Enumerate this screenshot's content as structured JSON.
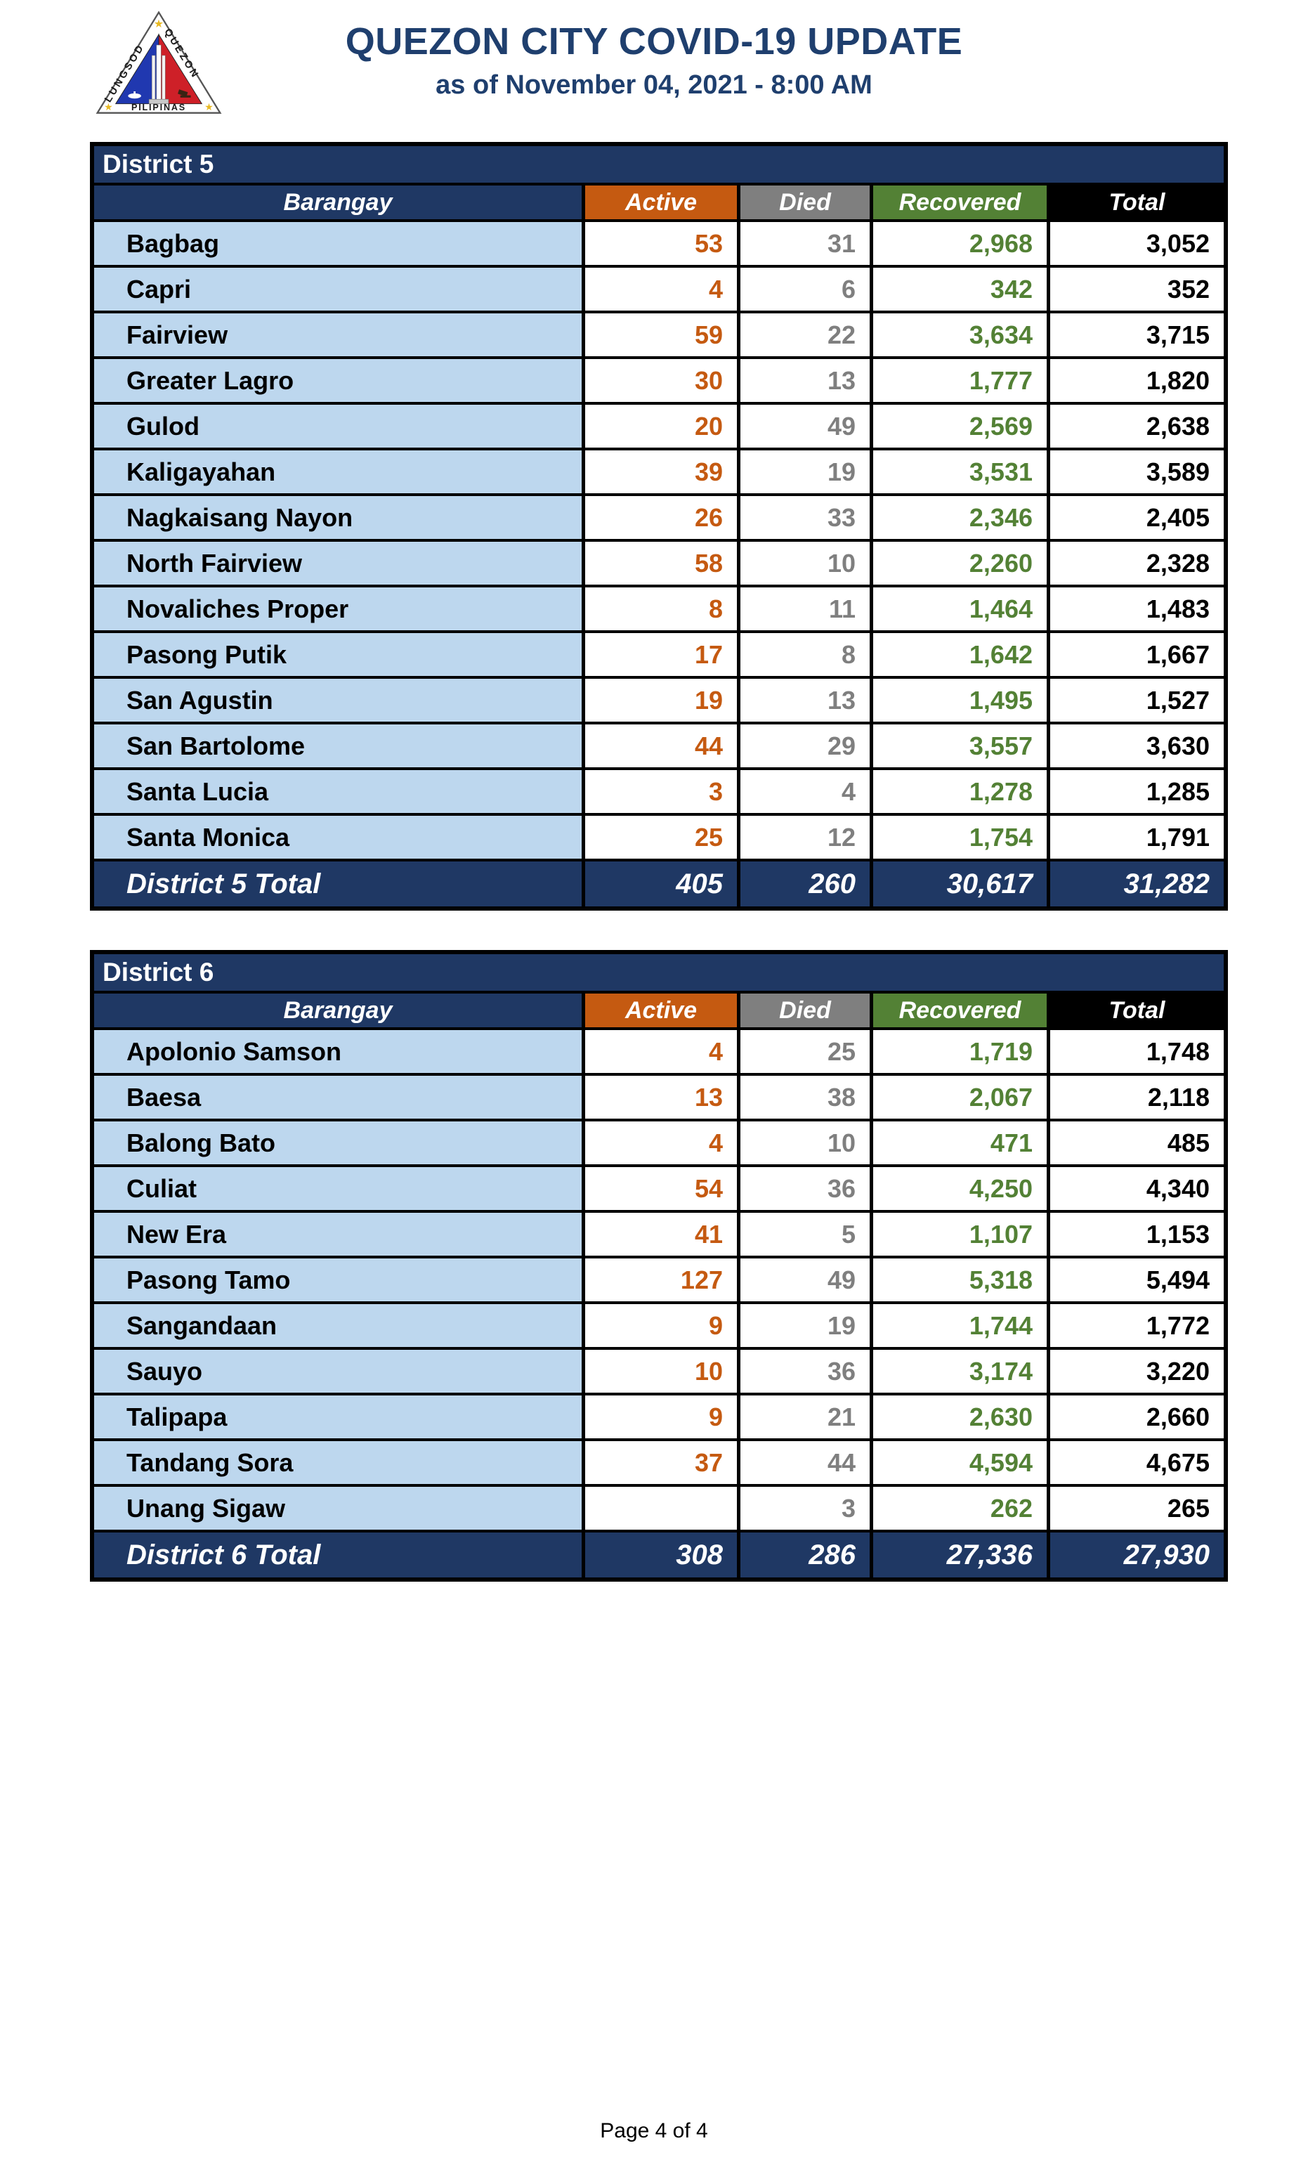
{
  "header": {
    "title": "QUEZON CITY COVID-19 UPDATE",
    "subtitle": "as of November 04, 2021 - 8:00 AM",
    "logo": {
      "name": "quezon-city-seal",
      "text_left": "LUNGSOD",
      "text_right": "QUEZON",
      "text_bottom": "PILIPINAS"
    }
  },
  "colors": {
    "navy": "#1F3864",
    "title_blue": "#1f3f6e",
    "row_light_blue": "#BDD7EE",
    "active_orange": "#C55A11",
    "died_gray": "#7F7F7F",
    "recovered_green": "#538135",
    "total_black": "#000000",
    "seal_blue": "#2038B0",
    "seal_red": "#CE2028",
    "seal_star_gold": "#E8B923"
  },
  "columns": [
    "Barangay",
    "Active",
    "Died",
    "Recovered",
    "Total"
  ],
  "tables": [
    {
      "district": "District 5",
      "rows": [
        [
          "Bagbag",
          "53",
          "31",
          "2,968",
          "3,052"
        ],
        [
          "Capri",
          "4",
          "6",
          "342",
          "352"
        ],
        [
          "Fairview",
          "59",
          "22",
          "3,634",
          "3,715"
        ],
        [
          "Greater Lagro",
          "30",
          "13",
          "1,777",
          "1,820"
        ],
        [
          "Gulod",
          "20",
          "49",
          "2,569",
          "2,638"
        ],
        [
          "Kaligayahan",
          "39",
          "19",
          "3,531",
          "3,589"
        ],
        [
          "Nagkaisang Nayon",
          "26",
          "33",
          "2,346",
          "2,405"
        ],
        [
          "North Fairview",
          "58",
          "10",
          "2,260",
          "2,328"
        ],
        [
          "Novaliches Proper",
          "8",
          "11",
          "1,464",
          "1,483"
        ],
        [
          "Pasong Putik",
          "17",
          "8",
          "1,642",
          "1,667"
        ],
        [
          "San Agustin",
          "19",
          "13",
          "1,495",
          "1,527"
        ],
        [
          "San Bartolome",
          "44",
          "29",
          "3,557",
          "3,630"
        ],
        [
          "Santa Lucia",
          "3",
          "4",
          "1,278",
          "1,285"
        ],
        [
          "Santa Monica",
          "25",
          "12",
          "1,754",
          "1,791"
        ]
      ],
      "total": [
        "District 5 Total",
        "405",
        "260",
        "30,617",
        "31,282"
      ]
    },
    {
      "district": "District 6",
      "rows": [
        [
          "Apolonio Samson",
          "4",
          "25",
          "1,719",
          "1,748"
        ],
        [
          "Baesa",
          "13",
          "38",
          "2,067",
          "2,118"
        ],
        [
          "Balong Bato",
          "4",
          "10",
          "471",
          "485"
        ],
        [
          "Culiat",
          "54",
          "36",
          "4,250",
          "4,340"
        ],
        [
          "New Era",
          "41",
          "5",
          "1,107",
          "1,153"
        ],
        [
          "Pasong Tamo",
          "127",
          "49",
          "5,318",
          "5,494"
        ],
        [
          "Sangandaan",
          "9",
          "19",
          "1,744",
          "1,772"
        ],
        [
          "Sauyo",
          "10",
          "36",
          "3,174",
          "3,220"
        ],
        [
          "Talipapa",
          "9",
          "21",
          "2,630",
          "2,660"
        ],
        [
          "Tandang Sora",
          "37",
          "44",
          "4,594",
          "4,675"
        ],
        [
          "Unang Sigaw",
          "",
          "3",
          "262",
          "265"
        ]
      ],
      "total": [
        "District 6 Total",
        "308",
        "286",
        "27,336",
        "27,930"
      ]
    }
  ],
  "footer": {
    "page": "Page 4 of 4"
  }
}
